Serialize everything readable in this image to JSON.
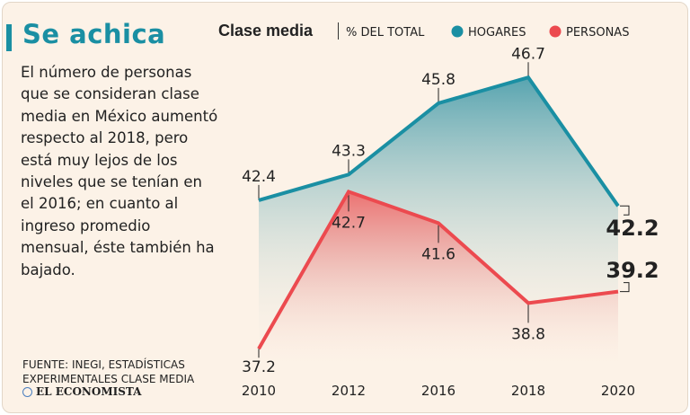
{
  "headline": "Se achica",
  "description": "El número de personas que se consideran clase media en México aumentó respecto al 2018, pero está muy lejos de los niveles que se tenían en el 2016; en cuanto al ingreso promedio mensual, éste también ha bajado.",
  "source": "FUENTE: INEGI, ESTADÍSTICAS EXPERIMENTALES CLASE MEDIA",
  "brand": "EL ECONOMISTA",
  "chart_data": {
    "type": "area",
    "title": "Clase media",
    "subtitle": "% DEL TOTAL",
    "categories": [
      "2010",
      "2012",
      "2016",
      "2018",
      "2020"
    ],
    "series": [
      {
        "name": "HOGARES",
        "color": "#1a8fa3",
        "values": [
          42.4,
          43.3,
          45.8,
          46.7,
          42.2
        ]
      },
      {
        "name": "PERSONAS",
        "color": "#ec4a4f",
        "values": [
          37.2,
          42.7,
          41.6,
          38.8,
          39.2
        ]
      }
    ],
    "value_labels": {
      "HOGARES": [
        "42.4",
        "43.3",
        "45.8",
        "46.7",
        "42.2"
      ],
      "PERSONAS": [
        "37.2",
        "42.7",
        "41.6",
        "38.8",
        "39.2"
      ]
    },
    "ylim": [
      36.2,
      47.4
    ],
    "legend": "top-right",
    "grid": false
  }
}
